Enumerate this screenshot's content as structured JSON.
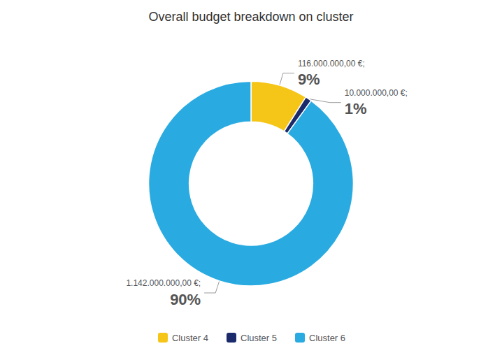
{
  "chart_data": {
    "type": "pie",
    "title": "Overall budget breakdown on cluster",
    "categories": [
      "Cluster 4",
      "Cluster 5",
      "Cluster 6"
    ],
    "values": [
      9,
      1,
      90
    ],
    "value_labels": [
      "9%",
      "1%",
      "90%"
    ],
    "annotations": [
      "116.000.000,00 €;",
      "10.000.000,00 €;",
      "1.142.000.000,00 €;"
    ],
    "colors": [
      "#F5C518",
      "#1B2A6B",
      "#29ABE2"
    ],
    "data_labels": true,
    "legend": "bottom"
  }
}
